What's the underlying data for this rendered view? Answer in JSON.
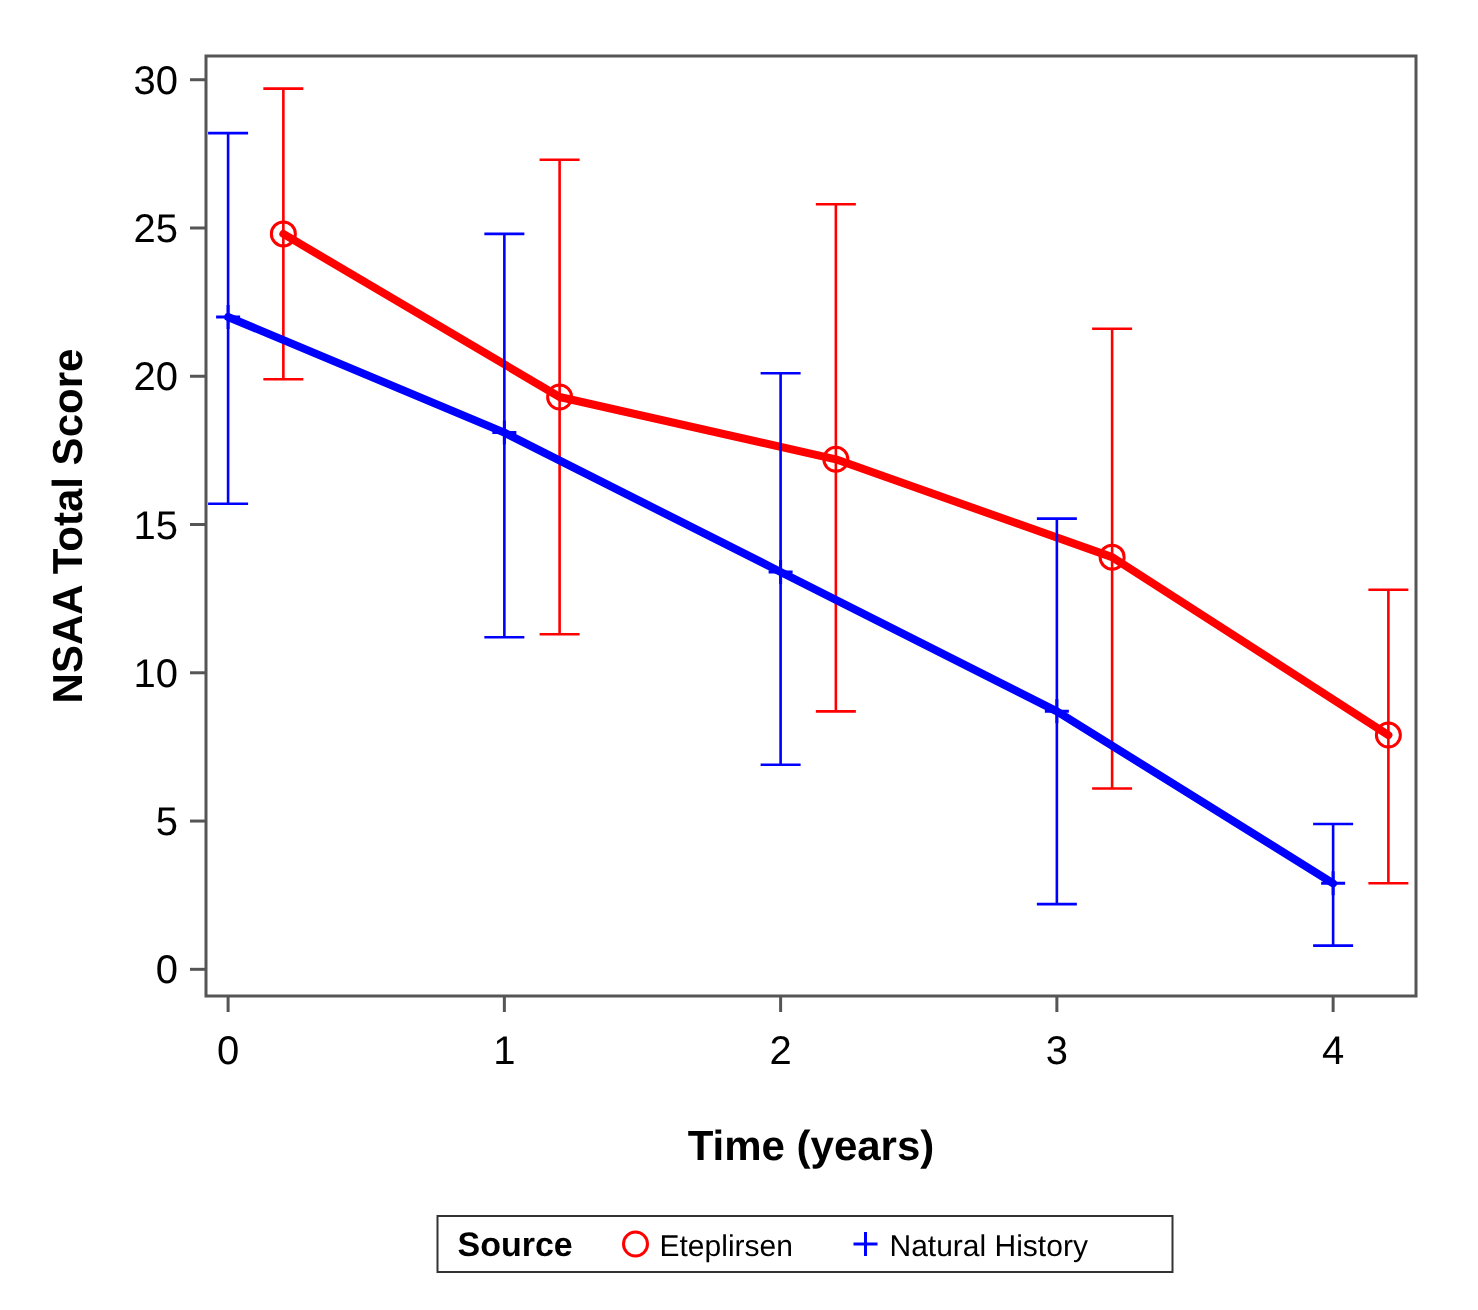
{
  "chart_data": {
    "type": "line",
    "xlabel": "Time (years)",
    "ylabel": "NSAA Total Score",
    "legend_title": "Source",
    "legend": "bottom",
    "grid": false,
    "line_style": "solid",
    "xlim": [
      -0.08,
      4.3
    ],
    "xticks": [
      0,
      1,
      2,
      3,
      4
    ],
    "ylim": [
      -0.9,
      30.8
    ],
    "yticks": [
      0,
      5,
      10,
      15,
      20,
      25,
      30
    ],
    "series": [
      {
        "name": "Eteplirsen",
        "color": "#ff0000",
        "marker": "circle",
        "x": [
          0.2,
          1.2,
          2.2,
          3.2,
          4.2
        ],
        "values": [
          24.8,
          19.3,
          17.2,
          13.9,
          7.9
        ],
        "errors": [
          [
            19.9,
            29.7
          ],
          [
            11.3,
            27.3
          ],
          [
            8.7,
            25.8
          ],
          [
            6.1,
            21.6
          ],
          [
            2.9,
            12.8
          ]
        ]
      },
      {
        "name": "Natural History",
        "color": "#0000ff",
        "marker": "cross",
        "x": [
          0,
          1,
          2,
          3,
          4
        ],
        "values": [
          22.0,
          18.1,
          13.4,
          8.7,
          2.9
        ],
        "errors": [
          [
            15.7,
            28.2
          ],
          [
            11.2,
            24.8
          ],
          [
            6.9,
            20.1
          ],
          [
            2.2,
            15.2
          ],
          [
            0.8,
            4.9
          ]
        ]
      }
    ]
  }
}
